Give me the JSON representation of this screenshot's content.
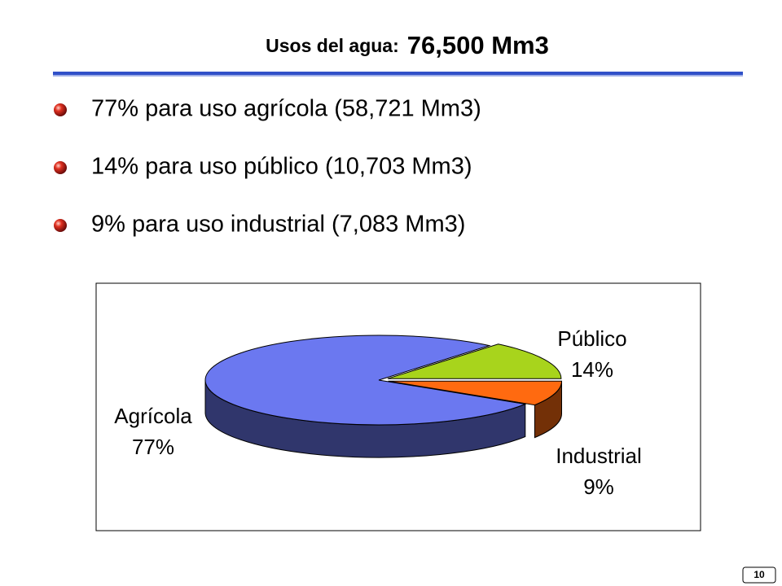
{
  "header": {
    "title": "Usos del agua:",
    "total": "76,500 Mm3"
  },
  "bullets": [
    "77% para uso agrícola (58,721 Mm3)",
    "14% para uso público (10,703 Mm3)",
    "9% para uso industrial (7,083 Mm3)"
  ],
  "chart_data": {
    "type": "pie",
    "categories": [
      "Agrícola",
      "Público",
      "Industrial"
    ],
    "values": [
      77,
      14,
      9
    ],
    "value_labels": [
      "77%",
      "14%",
      "9%"
    ],
    "colors": [
      "#6b78f0",
      "#a8d41c",
      "#ff6a10"
    ]
  },
  "page_number": "10"
}
